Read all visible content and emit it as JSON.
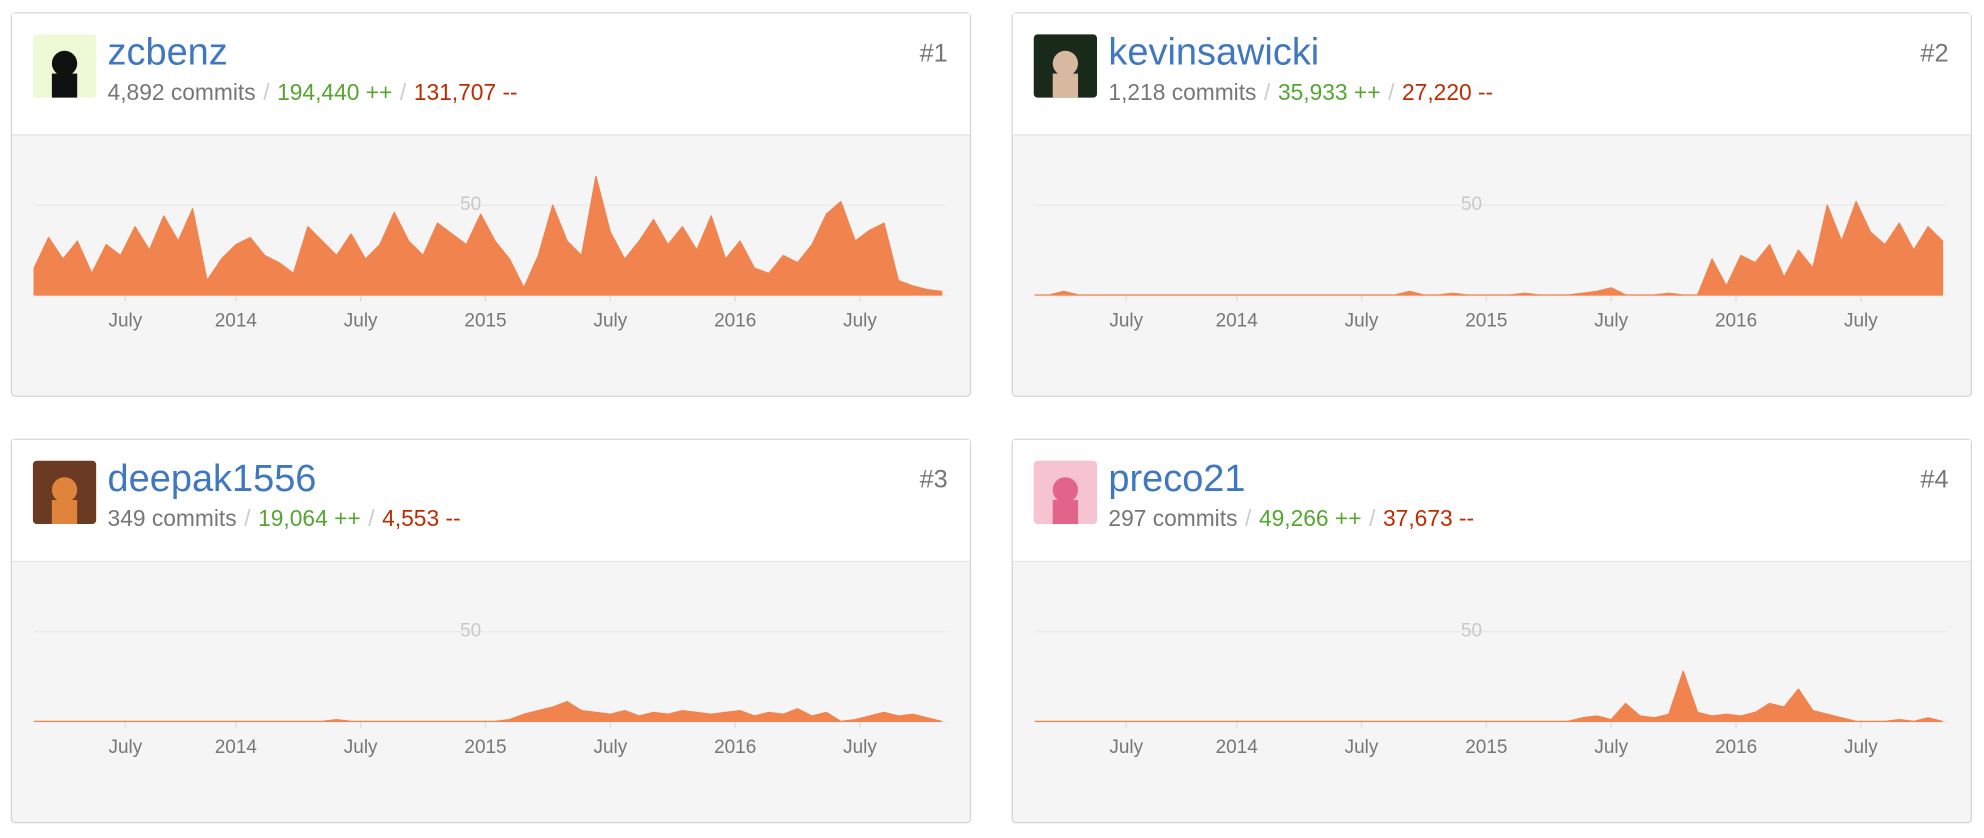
{
  "separator": "/",
  "chart_data": [
    {
      "type": "area",
      "user": "zcbenz",
      "rank": "#1",
      "commits": "4,892 commits",
      "additions": "194,440 ++",
      "deletions": "131,707 --",
      "color": "#f1834f",
      "x": [
        0,
        3,
        6,
        9,
        12,
        15,
        18,
        21,
        24,
        27,
        30,
        33,
        36,
        39,
        42,
        45,
        48,
        51,
        54,
        57,
        60,
        63,
        66,
        69,
        72,
        75,
        78,
        81,
        84,
        87,
        90,
        93,
        96,
        99,
        102,
        105,
        108,
        111,
        114,
        117,
        120,
        123,
        126,
        129,
        132,
        135,
        138,
        141,
        144,
        147,
        150,
        153,
        156,
        159,
        162,
        165,
        168,
        171,
        174,
        177,
        180,
        183,
        186,
        189
      ],
      "values": [
        15,
        32,
        20,
        30,
        12,
        28,
        22,
        38,
        25,
        44,
        30,
        48,
        8,
        20,
        28,
        32,
        22,
        18,
        12,
        38,
        30,
        22,
        34,
        20,
        28,
        46,
        30,
        22,
        40,
        34,
        28,
        45,
        30,
        20,
        4,
        22,
        50,
        30,
        22,
        66,
        35,
        20,
        30,
        42,
        28,
        38,
        25,
        44,
        20,
        30,
        15,
        12,
        22,
        18,
        28,
        45,
        52,
        30,
        36,
        40,
        8,
        5,
        3,
        2
      ],
      "xlim": [
        0,
        190
      ],
      "ylim": [
        0,
        80
      ],
      "yticks": [
        50
      ],
      "xticks": [
        {
          "value": 19,
          "label": "July"
        },
        {
          "value": 42,
          "label": "2014"
        },
        {
          "value": 68,
          "label": "July"
        },
        {
          "value": 94,
          "label": "2015"
        },
        {
          "value": 120,
          "label": "July"
        },
        {
          "value": 146,
          "label": "2016"
        },
        {
          "value": 172,
          "label": "July"
        }
      ]
    },
    {
      "type": "area",
      "user": "kevinsawicki",
      "rank": "#2",
      "commits": "1,218 commits",
      "additions": "35,933 ++",
      "deletions": "27,220 --",
      "color": "#f1834f",
      "x": [
        0,
        3,
        6,
        9,
        12,
        15,
        18,
        21,
        24,
        27,
        30,
        33,
        36,
        39,
        42,
        45,
        48,
        51,
        54,
        57,
        60,
        63,
        66,
        69,
        72,
        75,
        78,
        81,
        84,
        87,
        90,
        93,
        96,
        99,
        102,
        105,
        108,
        111,
        114,
        117,
        120,
        123,
        126,
        129,
        132,
        135,
        138,
        141,
        144,
        147,
        150,
        153,
        156,
        159,
        162,
        165,
        168,
        171,
        174,
        177,
        180,
        183,
        186,
        189
      ],
      "values": [
        0,
        0,
        2,
        0,
        0,
        0,
        0,
        0,
        0,
        0,
        0,
        0,
        0,
        0,
        0,
        0,
        0,
        0,
        0,
        0,
        0,
        0,
        0,
        0,
        0,
        0,
        2,
        0,
        0,
        1,
        0,
        0,
        0,
        0,
        1,
        0,
        0,
        0,
        1,
        2,
        4,
        0,
        0,
        0,
        1,
        0,
        0,
        20,
        5,
        22,
        18,
        28,
        10,
        25,
        15,
        50,
        30,
        52,
        35,
        28,
        40,
        25,
        38,
        30
      ],
      "xlim": [
        0,
        190
      ],
      "ylim": [
        0,
        80
      ],
      "yticks": [
        50
      ],
      "xticks": [
        {
          "value": 19,
          "label": "July"
        },
        {
          "value": 42,
          "label": "2014"
        },
        {
          "value": 68,
          "label": "July"
        },
        {
          "value": 94,
          "label": "2015"
        },
        {
          "value": 120,
          "label": "July"
        },
        {
          "value": 146,
          "label": "2016"
        },
        {
          "value": 172,
          "label": "July"
        }
      ]
    },
    {
      "type": "area",
      "user": "deepak1556",
      "rank": "#3",
      "commits": "349 commits",
      "additions": "19,064 ++",
      "deletions": "4,553 --",
      "color": "#f1834f",
      "x": [
        0,
        3,
        6,
        9,
        12,
        15,
        18,
        21,
        24,
        27,
        30,
        33,
        36,
        39,
        42,
        45,
        48,
        51,
        54,
        57,
        60,
        63,
        66,
        69,
        72,
        75,
        78,
        81,
        84,
        87,
        90,
        93,
        96,
        99,
        102,
        105,
        108,
        111,
        114,
        117,
        120,
        123,
        126,
        129,
        132,
        135,
        138,
        141,
        144,
        147,
        150,
        153,
        156,
        159,
        162,
        165,
        168,
        171,
        174,
        177,
        180,
        183,
        186,
        189
      ],
      "values": [
        0,
        0,
        0,
        0,
        0,
        0,
        0,
        0,
        0,
        0,
        0,
        0,
        0,
        0,
        0,
        0,
        0,
        0,
        0,
        0,
        0,
        1,
        0,
        0,
        0,
        0,
        0,
        0,
        0,
        0,
        0,
        0,
        0,
        1,
        4,
        6,
        8,
        11,
        6,
        5,
        4,
        6,
        3,
        5,
        4,
        6,
        5,
        4,
        5,
        6,
        3,
        5,
        4,
        7,
        3,
        5,
        0,
        1,
        3,
        5,
        3,
        4,
        2,
        0
      ],
      "xlim": [
        0,
        190
      ],
      "ylim": [
        0,
        80
      ],
      "yticks": [
        50
      ],
      "xticks": [
        {
          "value": 19,
          "label": "July"
        },
        {
          "value": 42,
          "label": "2014"
        },
        {
          "value": 68,
          "label": "July"
        },
        {
          "value": 94,
          "label": "2015"
        },
        {
          "value": 120,
          "label": "July"
        },
        {
          "value": 146,
          "label": "2016"
        },
        {
          "value": 172,
          "label": "July"
        }
      ]
    },
    {
      "type": "area",
      "user": "preco21",
      "rank": "#4",
      "commits": "297 commits",
      "additions": "49,266 ++",
      "deletions": "37,673 --",
      "color": "#f1834f",
      "x": [
        0,
        3,
        6,
        9,
        12,
        15,
        18,
        21,
        24,
        27,
        30,
        33,
        36,
        39,
        42,
        45,
        48,
        51,
        54,
        57,
        60,
        63,
        66,
        69,
        72,
        75,
        78,
        81,
        84,
        87,
        90,
        93,
        96,
        99,
        102,
        105,
        108,
        111,
        114,
        117,
        120,
        123,
        126,
        129,
        132,
        135,
        138,
        141,
        144,
        147,
        150,
        153,
        156,
        159,
        162,
        165,
        168,
        171,
        174,
        177,
        180,
        183,
        186,
        189
      ],
      "values": [
        0,
        0,
        0,
        0,
        0,
        0,
        0,
        0,
        0,
        0,
        0,
        0,
        0,
        0,
        0,
        0,
        0,
        0,
        0,
        0,
        0,
        0,
        0,
        0,
        0,
        0,
        0,
        0,
        0,
        0,
        0,
        0,
        0,
        0,
        0,
        0,
        0,
        0,
        2,
        3,
        1,
        10,
        3,
        2,
        4,
        28,
        5,
        3,
        4,
        3,
        5,
        10,
        8,
        18,
        6,
        4,
        2,
        0,
        0,
        0,
        1,
        0,
        2,
        0
      ],
      "xlim": [
        0,
        190
      ],
      "ylim": [
        0,
        80
      ],
      "yticks": [
        50
      ],
      "xticks": [
        {
          "value": 19,
          "label": "July"
        },
        {
          "value": 42,
          "label": "2014"
        },
        {
          "value": 68,
          "label": "July"
        },
        {
          "value": 94,
          "label": "2015"
        },
        {
          "value": 120,
          "label": "July"
        },
        {
          "value": 146,
          "label": "2016"
        },
        {
          "value": 172,
          "label": "July"
        }
      ]
    }
  ]
}
